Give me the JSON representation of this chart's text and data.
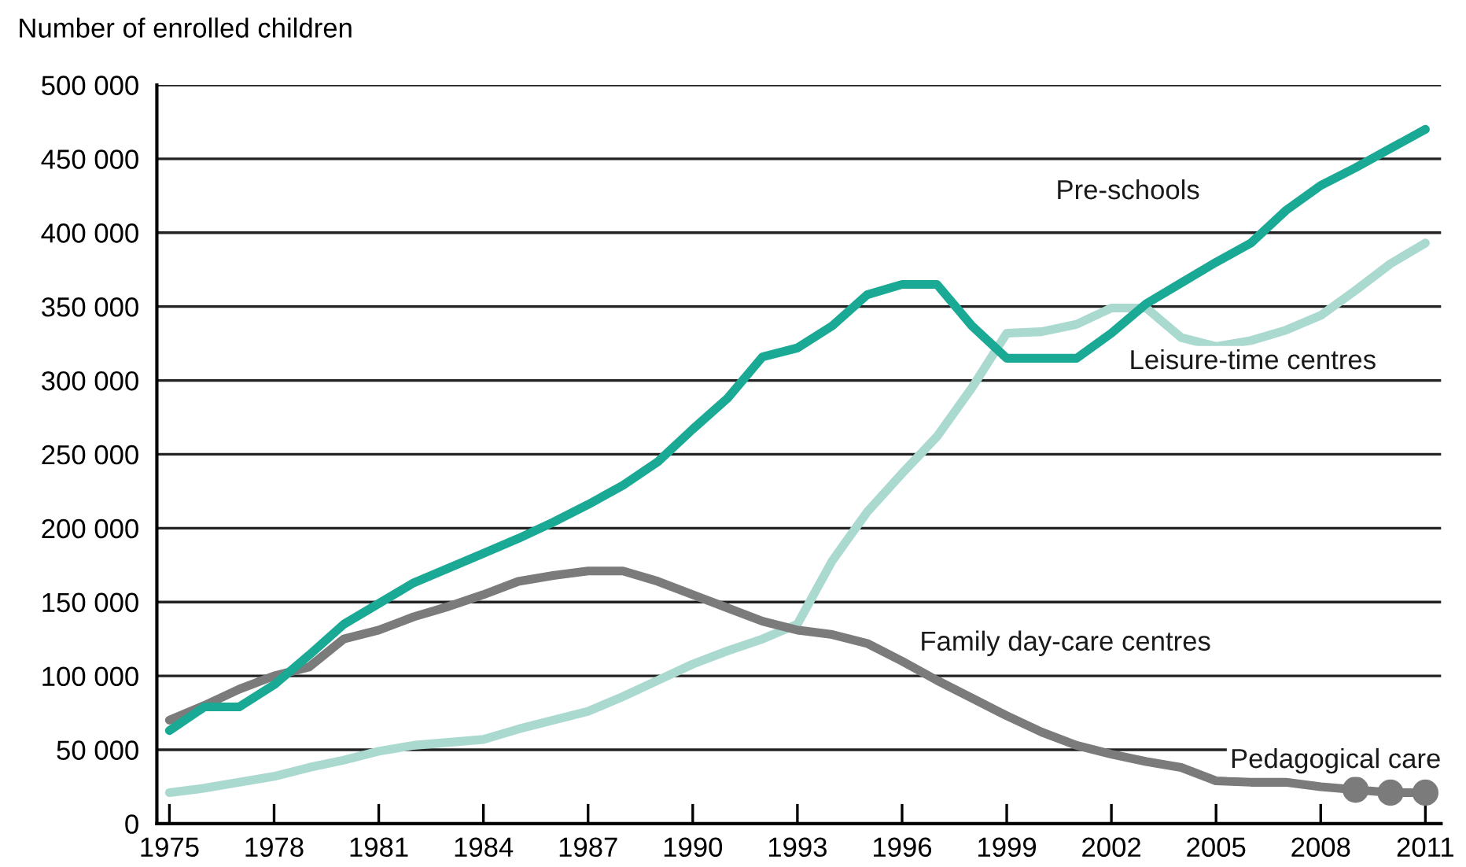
{
  "chart_data": {
    "type": "line",
    "ylabel": "Number of enrolled children",
    "x": [
      1975,
      1976,
      1977,
      1978,
      1979,
      1980,
      1981,
      1982,
      1983,
      1984,
      1985,
      1986,
      1987,
      1988,
      1989,
      1990,
      1991,
      1992,
      1993,
      1994,
      1995,
      1996,
      1997,
      1998,
      1999,
      2000,
      2001,
      2002,
      2003,
      2004,
      2005,
      2006,
      2007,
      2008,
      2009,
      2010,
      2011
    ],
    "series": [
      {
        "name": "Pre-schools",
        "color": "#1aa994",
        "values": [
          63000,
          79000,
          79000,
          94000,
          114000,
          135000,
          149000,
          163000,
          173000,
          183000,
          193000,
          204000,
          216000,
          229000,
          245000,
          267000,
          288000,
          316000,
          322000,
          337000,
          358000,
          365000,
          365000,
          337000,
          315000,
          315000,
          315000,
          332000,
          352000,
          366000,
          380000,
          393000,
          415000,
          432000,
          444000,
          457000,
          470000
        ]
      },
      {
        "name": "Leisure-time centres",
        "color": "#aad9cf",
        "values": [
          21000,
          24000,
          28000,
          32000,
          38000,
          43000,
          49000,
          53000,
          55000,
          57000,
          64000,
          70000,
          76000,
          86000,
          97000,
          108000,
          117000,
          125000,
          135000,
          178000,
          211000,
          237000,
          262000,
          295000,
          332000,
          333000,
          338000,
          349000,
          349000,
          329000,
          323000,
          327000,
          334000,
          344000,
          361000,
          379000,
          393000
        ]
      },
      {
        "name": "Family day-care centres",
        "color": "#7b7b7b",
        "values": [
          70000,
          80000,
          91000,
          100000,
          106000,
          125000,
          131000,
          140000,
          147000,
          155000,
          164000,
          168000,
          171000,
          171000,
          164000,
          155000,
          146000,
          137000,
          131000,
          128000,
          122000,
          110000,
          97000,
          85000,
          73000,
          62000,
          53000,
          47000,
          42000,
          38000,
          29000,
          28000,
          28000,
          25000,
          23000,
          null,
          null
        ]
      },
      {
        "name": "Pedagogical care",
        "color": "#7b7b7b",
        "marker": "circle",
        "x": [
          2009,
          2010,
          2011
        ],
        "values": [
          23000,
          21000,
          21000
        ]
      }
    ],
    "xlim": [
      1974.64,
      2011.45
    ],
    "xticks": [
      1975,
      1978,
      1981,
      1984,
      1987,
      1990,
      1993,
      1996,
      1999,
      2002,
      2005,
      2008,
      2011
    ],
    "ylim": [
      0,
      500000
    ],
    "yticks": [
      {
        "value": 0,
        "label": "0"
      },
      {
        "value": 50000,
        "label": "50 000"
      },
      {
        "value": 100000,
        "label": "100 000"
      },
      {
        "value": 150000,
        "label": "150 000"
      },
      {
        "value": 200000,
        "label": "200 000"
      },
      {
        "value": 250000,
        "label": "250 000"
      },
      {
        "value": 300000,
        "label": "300 000"
      },
      {
        "value": 350000,
        "label": "350 000"
      },
      {
        "value": 400000,
        "label": "400 000"
      },
      {
        "value": 450000,
        "label": "450 000"
      },
      {
        "value": 500000,
        "label": "500 000"
      }
    ],
    "grid": "y",
    "legend": false,
    "marker": "none",
    "line_style": "solid"
  }
}
